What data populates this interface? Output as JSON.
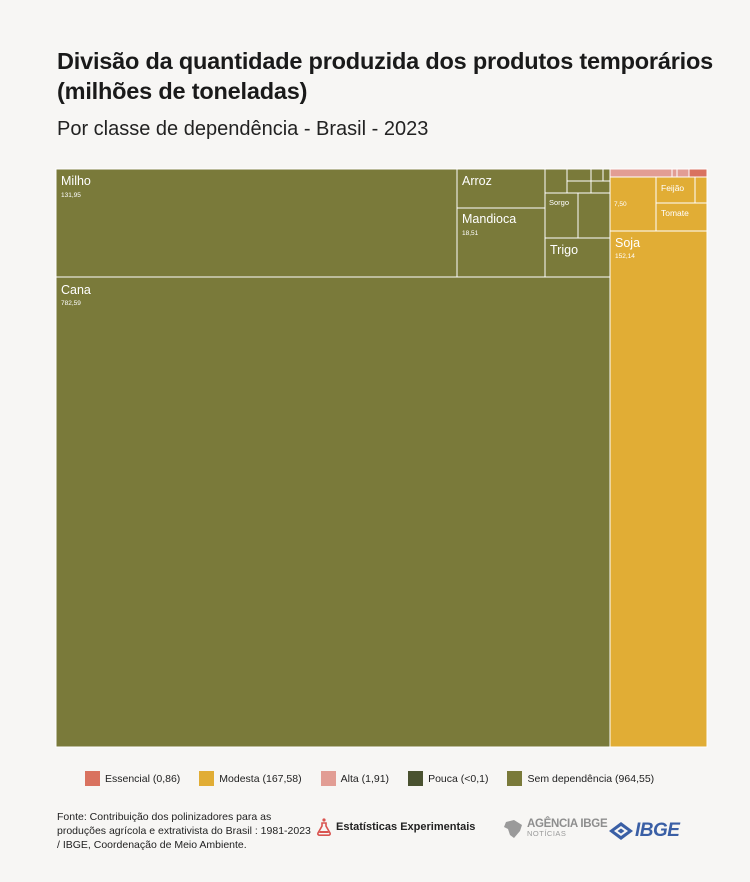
{
  "header": {
    "title": "Divisão da quantidade produzida dos produtos temporários (milhões de toneladas)",
    "subtitle": "Por classe de dependência - Brasil - 2023"
  },
  "chart_data": {
    "type": "treemap",
    "groups": [
      {
        "name": "Sem dependência",
        "color": "#7a7a3a",
        "items": [
          {
            "label": "Cana",
            "value": "782,59"
          },
          {
            "label": "Milho",
            "value": "131,95"
          },
          {
            "label": "Arroz",
            "value": ""
          },
          {
            "label": "Mandioca",
            "value": "18,51"
          },
          {
            "label": "Sorgo",
            "value": ""
          },
          {
            "label": "Trigo",
            "value": ""
          }
        ]
      },
      {
        "name": "Modesta",
        "color": "#e1ad35",
        "items": [
          {
            "label": "Soja",
            "value": "152,14"
          },
          {
            "label": "",
            "value": "7,50"
          },
          {
            "label": "Feijão",
            "value": ""
          },
          {
            "label": "Tomate",
            "value": ""
          }
        ]
      },
      {
        "name": "Alta",
        "color": "#e29d94"
      },
      {
        "name": "Essencial",
        "color": "#d9725f"
      }
    ]
  },
  "legend": [
    {
      "label": "Essencial (0,86)",
      "color": "#d9725f"
    },
    {
      "label": "Modesta (167,58)",
      "color": "#e1ad35"
    },
    {
      "label": "Alta (1,91)",
      "color": "#e29d94"
    },
    {
      "label": "Pouca (<0,1)",
      "color": "#4a5230"
    },
    {
      "label": "Sem dependência (964,55)",
      "color": "#7a7a3a"
    }
  ],
  "footer": {
    "source": "Fonte: Contribuição dos polinizadores para as produções agrícola e extrativista do Brasil : 1981-2023 / IBGE, Coordenação de Meio Ambiente.",
    "brand_experimental": "Estatísticas Experimentais",
    "brand_agencia": "AGÊNCIA IBGE",
    "brand_noticias": "NOTÍCIAS",
    "brand_ibge": "IBGE"
  }
}
